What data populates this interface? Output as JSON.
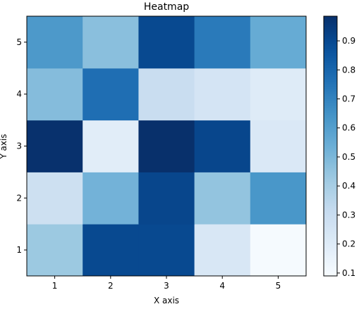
{
  "chart_data": {
    "type": "heatmap",
    "title": "Heatmap",
    "xlabel": "X axis",
    "ylabel": "Y axis",
    "x": [
      1,
      2,
      3,
      4,
      5
    ],
    "y": [
      1,
      2,
      3,
      4,
      5
    ],
    "x_ticks": [
      "1",
      "2",
      "3",
      "4",
      "5"
    ],
    "y_ticks": [
      "1",
      "2",
      "3",
      "4",
      "5"
    ],
    "values": [
      [
        0.43,
        0.9,
        0.9,
        0.23,
        0.1
      ],
      [
        0.28,
        0.52,
        0.91,
        0.45,
        0.63
      ],
      [
        0.98,
        0.19,
        1.0,
        0.91,
        0.22
      ],
      [
        0.48,
        0.77,
        0.3,
        0.25,
        0.2
      ],
      [
        0.62,
        0.47,
        0.9,
        0.73,
        0.55
      ]
    ],
    "colormap": "Blues",
    "vmin": 0.09,
    "vmax": 0.985,
    "colorbar": {
      "ticks": [
        0.1,
        0.2,
        0.3,
        0.4,
        0.5,
        0.6,
        0.7,
        0.8,
        0.9
      ],
      "tick_labels": [
        "0.1",
        "0.2",
        "0.3",
        "0.4",
        "0.5",
        "0.6",
        "0.7",
        "0.8",
        "0.9"
      ]
    },
    "grid": false
  }
}
